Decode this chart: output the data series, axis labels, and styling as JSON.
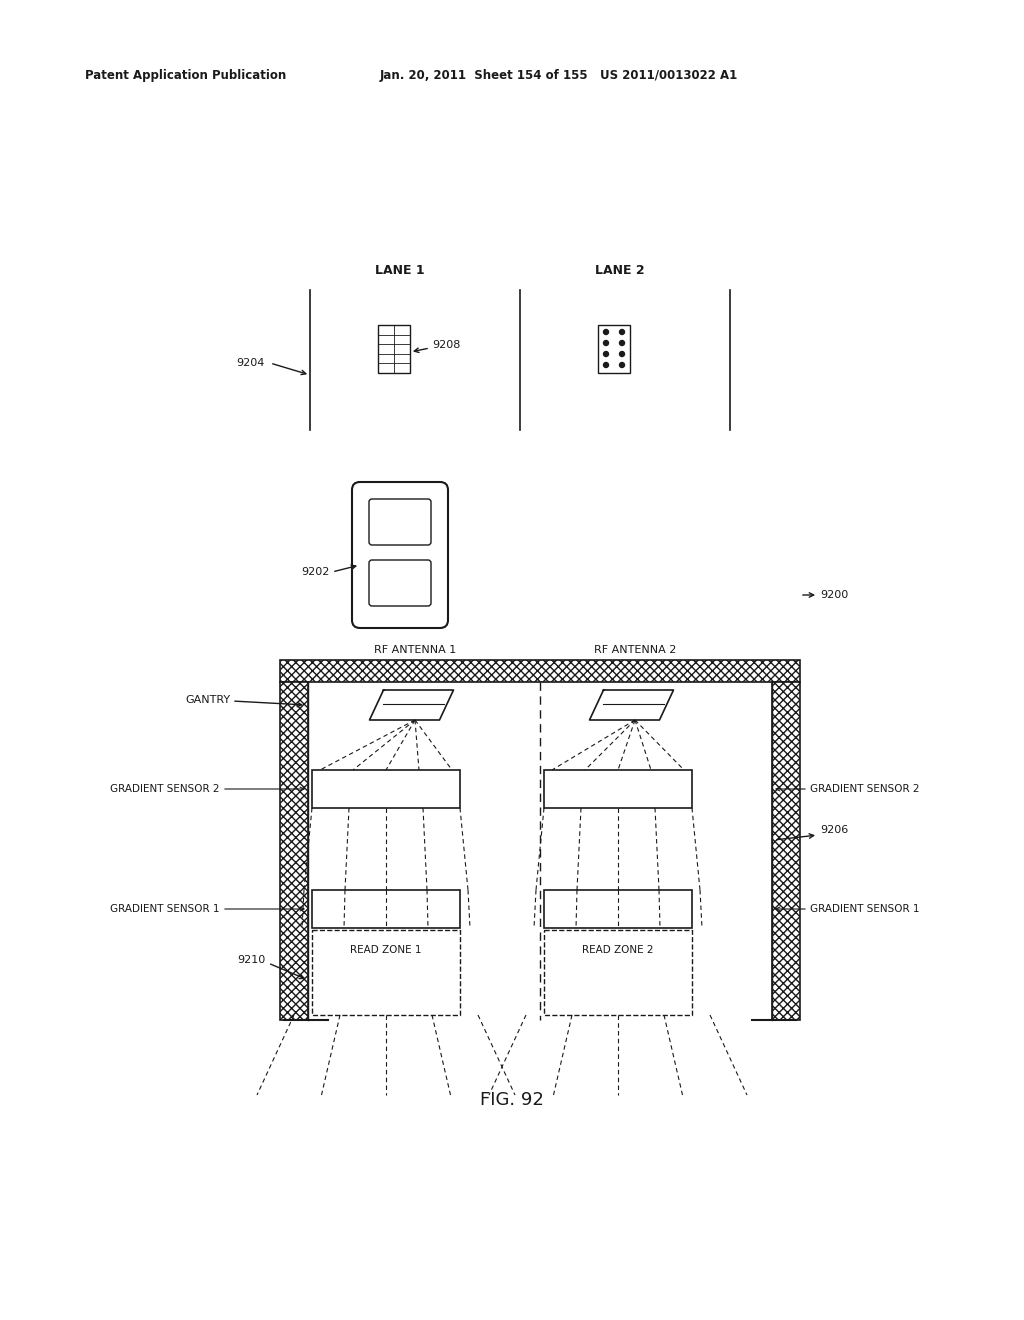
{
  "title_left": "Patent Application Publication",
  "title_right": "Jan. 20, 2011  Sheet 154 of 155   US 2011/0013022 A1",
  "fig_label": "FIG. 92",
  "bg_color": "#ffffff",
  "line_color": "#1a1a1a",
  "labels": {
    "lane1": "LANE 1",
    "lane2": "LANE 2",
    "rf_antenna1": "RF ANTENNA 1",
    "rf_antenna2": "RF ANTENNA 2",
    "gantry": "GANTRY",
    "gradient_sensor2_left": "GRADIENT SENSOR 2",
    "gradient_sensor2_right": "GRADIENT SENSOR 2",
    "gradient_sensor1_left": "GRADIENT SENSOR 1",
    "gradient_sensor1_right": "GRADIENT SENSOR 1",
    "read_zone1": "READ ZONE 1",
    "read_zone2": "READ ZONE 2",
    "ref_9200": "9200",
    "ref_9202": "9202",
    "ref_9204": "9204",
    "ref_9206": "9206",
    "ref_9208": "9208",
    "ref_9210": "9210"
  }
}
